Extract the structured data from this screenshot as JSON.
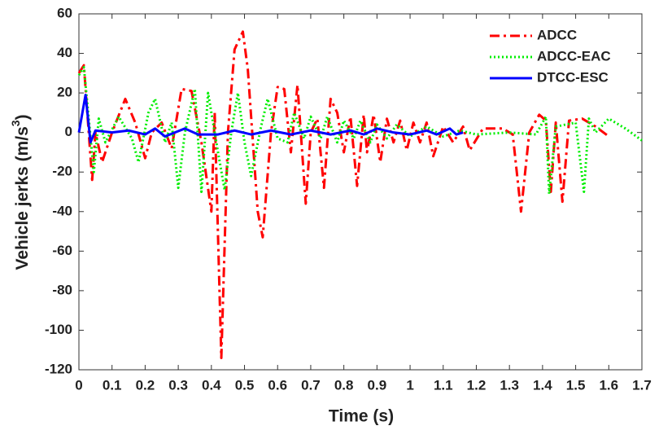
{
  "chart_data": {
    "type": "line",
    "xlabel": "Time (s)",
    "ylabel": [
      "Vehicle jerks (m/s",
      "3",
      ")"
    ],
    "xlim": [
      0,
      1.7
    ],
    "xticks": [
      0,
      0.1,
      0.2,
      0.3,
      0.4,
      0.5,
      0.6,
      0.7,
      0.8,
      0.9,
      1,
      1.1,
      1.2,
      1.3,
      1.4,
      1.5,
      1.6,
      1.7
    ],
    "ylim": [
      -120,
      60
    ],
    "yticks": [
      -120,
      -100,
      -80,
      -60,
      -40,
      -20,
      0,
      20,
      40,
      60
    ],
    "legend": "upper right",
    "series": [
      {
        "name": "ADCC",
        "color": "#ff0000",
        "style": "dashdot",
        "x": [
          0,
          0.015,
          0.04,
          0.05,
          0.07,
          0.1,
          0.14,
          0.17,
          0.2,
          0.22,
          0.25,
          0.28,
          0.31,
          0.34,
          0.37,
          0.4,
          0.41,
          0.43,
          0.45,
          0.47,
          0.495,
          0.51,
          0.54,
          0.555,
          0.58,
          0.6,
          0.62,
          0.64,
          0.66,
          0.685,
          0.7,
          0.72,
          0.74,
          0.76,
          0.78,
          0.8,
          0.82,
          0.84,
          0.86,
          0.87,
          0.89,
          0.91,
          0.93,
          0.95,
          0.97,
          0.99,
          1.01,
          1.03,
          1.05,
          1.07,
          1.1,
          1.13,
          1.16,
          1.18,
          1.22,
          1.28,
          1.31,
          1.335,
          1.36,
          1.39,
          1.41,
          1.425,
          1.44,
          1.46,
          1.48,
          1.52,
          1.56,
          1.6
        ],
        "values": [
          30,
          34,
          -24,
          0,
          -15,
          0,
          17,
          5,
          -13,
          0,
          5,
          -8,
          22,
          21,
          -5,
          -40,
          10,
          -114,
          0,
          42,
          51,
          32,
          -40,
          -53,
          0,
          23,
          22,
          -10,
          24,
          -36,
          0,
          7,
          -28,
          17,
          10,
          -10,
          8,
          -27,
          9,
          -10,
          9,
          -15,
          7,
          -5,
          6,
          -9,
          5,
          -5,
          5,
          -12,
          3,
          -5,
          3,
          -9,
          2,
          2,
          -1,
          -40,
          0,
          9,
          6,
          -30,
          5,
          -35,
          6,
          7,
          3,
          -2
        ]
      },
      {
        "name": "ADCC-EAC",
        "color": "#00ee00",
        "style": "dotted",
        "x": [
          0,
          0.015,
          0.045,
          0.06,
          0.08,
          0.12,
          0.16,
          0.18,
          0.21,
          0.23,
          0.26,
          0.28,
          0.3,
          0.32,
          0.35,
          0.37,
          0.39,
          0.42,
          0.44,
          0.46,
          0.48,
          0.5,
          0.52,
          0.55,
          0.57,
          0.6,
          0.63,
          0.65,
          0.68,
          0.7,
          0.73,
          0.75,
          0.78,
          0.8,
          0.83,
          0.85,
          0.88,
          0.9,
          0.93,
          0.96,
          1.0,
          1.05,
          1.1,
          1.15,
          1.2,
          1.3,
          1.38,
          1.41,
          1.42,
          1.44,
          1.5,
          1.525,
          1.54,
          1.56,
          1.6,
          1.65,
          1.7
        ],
        "values": [
          29,
          33,
          -20,
          7,
          -5,
          8,
          -3,
          -15,
          10,
          17,
          -5,
          5,
          -28,
          0,
          22,
          -30,
          20,
          -10,
          -29,
          0,
          20,
          -5,
          -22,
          3,
          17,
          -3,
          -5,
          10,
          -3,
          8,
          -3,
          8,
          -5,
          6,
          -3,
          6,
          -5,
          4,
          -3,
          4,
          -2,
          3,
          -2,
          1,
          -1,
          0,
          -1,
          8,
          -31,
          3,
          5,
          -30,
          7,
          0,
          7,
          2,
          -4
        ]
      },
      {
        "name": "DTCC-ESC",
        "color": "#0000ff",
        "style": "solid",
        "x": [
          0,
          0.02,
          0.035,
          0.05,
          0.1,
          0.15,
          0.2,
          0.23,
          0.26,
          0.29,
          0.32,
          0.36,
          0.42,
          0.47,
          0.52,
          0.58,
          0.64,
          0.7,
          0.76,
          0.82,
          0.86,
          0.9,
          0.95,
          1.0,
          1.05,
          1.08,
          1.12,
          1.14,
          1.16
        ],
        "values": [
          0,
          19,
          -5,
          1,
          0,
          1,
          -1,
          2,
          -2,
          0,
          2,
          -1,
          -1,
          1,
          -1,
          1,
          -1,
          1,
          -1,
          1,
          -1,
          2,
          0,
          -1,
          1,
          -1,
          2,
          -1,
          0
        ]
      }
    ]
  }
}
